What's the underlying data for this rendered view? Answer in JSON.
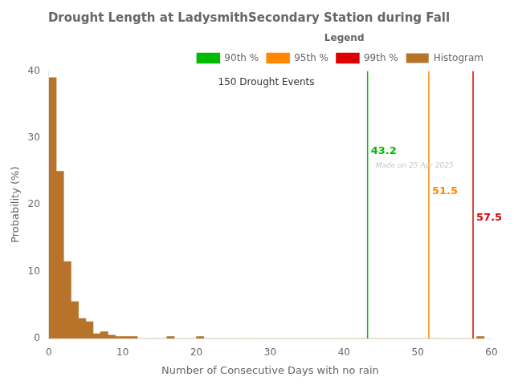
{
  "chart_data": {
    "type": "histogram",
    "title": "Drought Length at LadysmithSecondary Station during Fall",
    "xlabel": "Number of Consecutive Days with no rain",
    "ylabel": "Probability (%)",
    "bins": [
      0,
      1,
      2,
      3,
      4,
      5,
      6,
      7,
      8,
      9,
      10,
      11,
      12,
      13,
      14,
      15,
      16,
      17,
      18,
      19,
      20,
      21,
      22,
      23,
      24,
      25,
      26,
      27,
      28,
      29,
      30,
      31,
      32,
      33,
      34,
      35,
      36,
      37,
      38,
      39,
      40,
      41,
      42,
      43,
      44,
      45,
      46,
      47,
      48,
      49,
      50,
      51,
      52,
      53,
      54,
      55,
      56,
      57,
      58,
      59
    ],
    "series": [
      {
        "name": "90th %",
        "type": "vline",
        "x": 43.2,
        "color": "#00bb00",
        "data_labels": true
      },
      {
        "name": "95th %",
        "type": "vline",
        "x": 51.5,
        "color": "#ff8800",
        "data_labels": true
      },
      {
        "name": "99th %",
        "type": "vline",
        "x": 57.5,
        "color": "#dd0000",
        "data_labels": true
      },
      {
        "name": "Histogram",
        "type": "bar",
        "color": "#b8732a",
        "values": [
          39.0,
          25.0,
          11.5,
          5.5,
          3.0,
          2.5,
          0.7,
          1.0,
          0.5,
          0.3,
          0.3,
          0.3,
          0.0,
          0.0,
          0.0,
          0.0,
          0.3,
          0.0,
          0.0,
          0.0,
          0.3,
          0.0,
          0.0,
          0.0,
          0.0,
          0.0,
          0.0,
          0.0,
          0.0,
          0.0,
          0.0,
          0.0,
          0.0,
          0.0,
          0.0,
          0.0,
          0.0,
          0.0,
          0.0,
          0.0,
          0.0,
          0.0,
          0.0,
          0.0,
          0.0,
          0.0,
          0.0,
          0.0,
          0.0,
          0.0,
          0.0,
          0.0,
          0.0,
          0.0,
          0.0,
          0.0,
          0.0,
          0.0,
          0.3
        ]
      }
    ],
    "xlim": [
      0,
      60
    ],
    "ylim": [
      0,
      40
    ],
    "xticks": [
      0,
      10,
      20,
      30,
      40,
      50,
      60
    ],
    "yticks": [
      0,
      10,
      20,
      30,
      40
    ],
    "grid": false,
    "legend": "upper right",
    "legend_title": "Legend",
    "annotations": [
      "Made on 25 Apr 2025",
      "150 Drought Events"
    ]
  }
}
